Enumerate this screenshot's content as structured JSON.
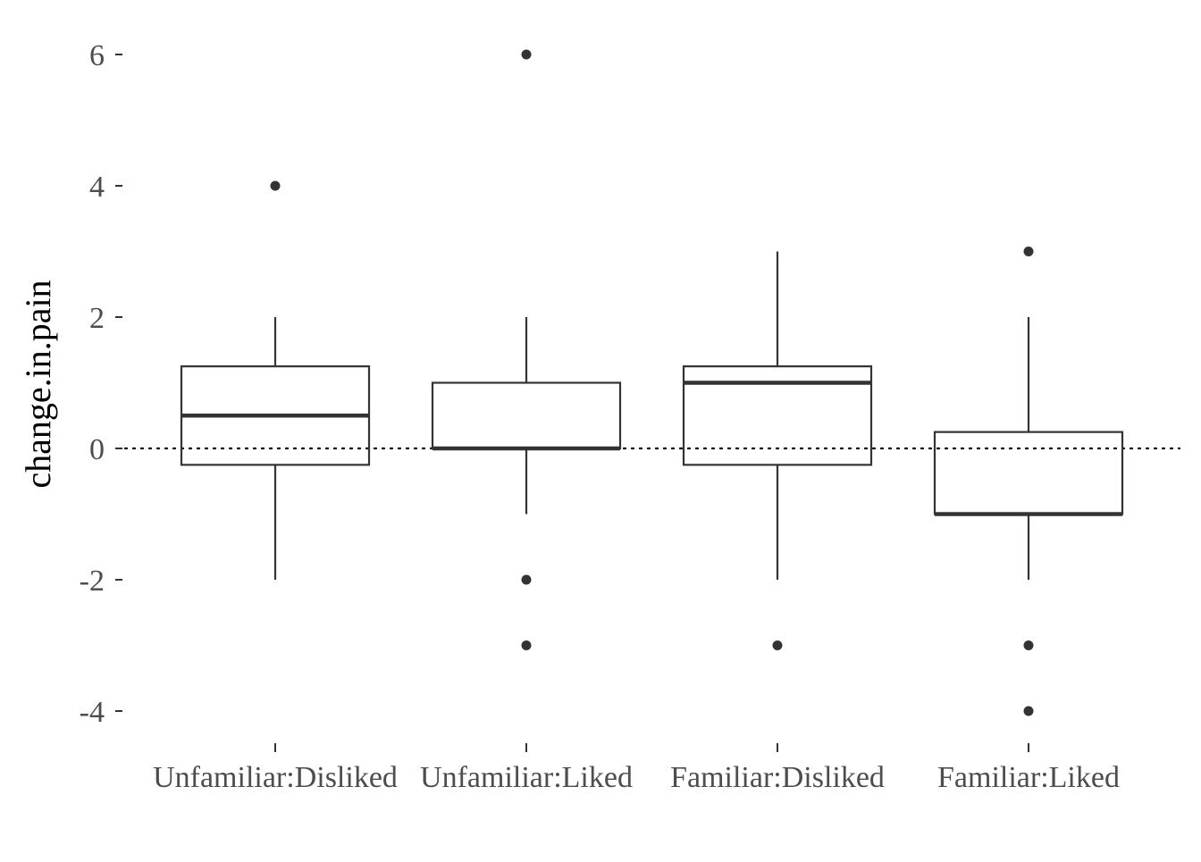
{
  "chart_data": {
    "type": "box",
    "title": "",
    "xlabel": "",
    "ylabel": "change.in.pain",
    "ylim": [
      -4.5,
      6.5
    ],
    "yticks": [
      -4,
      -2,
      0,
      2,
      4,
      6
    ],
    "ytick_labels": [
      "-4",
      "-2",
      "0",
      "2",
      "4",
      "6"
    ],
    "categories": [
      "Unfamiliar:Disliked",
      "Unfamiliar:Liked",
      "Familiar:Disliked",
      "Familiar:Liked"
    ],
    "boxes": [
      {
        "category": "Unfamiliar:Disliked",
        "whisker_low": -2,
        "q1": -0.25,
        "median": 0.5,
        "q3": 1.25,
        "whisker_high": 2,
        "outliers": [
          4
        ]
      },
      {
        "category": "Unfamiliar:Liked",
        "whisker_low": -1,
        "q1": 0,
        "median": 0,
        "q3": 1,
        "whisker_high": 2,
        "outliers": [
          6,
          -2,
          -3
        ]
      },
      {
        "category": "Familiar:Disliked",
        "whisker_low": -2,
        "q1": -0.25,
        "median": 1,
        "q3": 1.25,
        "whisker_high": 3,
        "outliers": [
          -3
        ]
      },
      {
        "category": "Familiar:Liked",
        "whisker_low": -2,
        "q1": -1,
        "median": -1,
        "q3": 0.25,
        "whisker_high": 2,
        "outliers": [
          3,
          -3,
          -4
        ]
      }
    ],
    "reference_line": {
      "y": 0,
      "style": "dotted"
    },
    "grid": false,
    "legend": "none",
    "colors": {
      "box_stroke": "#333333",
      "outlier": "#333333",
      "tick_text": "#4d4d4d",
      "axis_title": "#000000",
      "reference_line": "#000000"
    }
  }
}
